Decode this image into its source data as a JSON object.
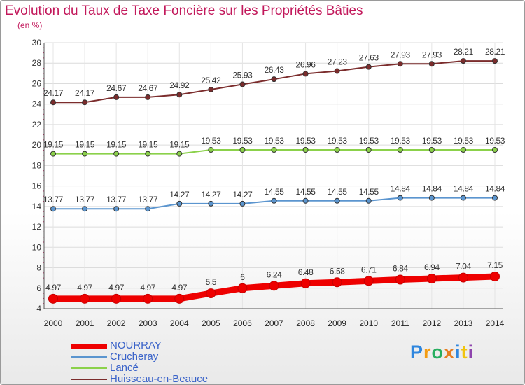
{
  "title": "Evolution du Taux de Taxe Foncière sur les Propriétés Bâties",
  "subtitle": "(en %)",
  "brand": {
    "letters": [
      {
        "ch": "P",
        "color": "#2e86de"
      },
      {
        "ch": "r",
        "color": "#f39c12"
      },
      {
        "ch": "o",
        "color": "#27ae60"
      },
      {
        "ch": "x",
        "color": "#e67e22"
      },
      {
        "ch": "i",
        "color": "#2e86de"
      },
      {
        "ch": "t",
        "color": "#f1c40f"
      },
      {
        "ch": "i",
        "color": "#8e44ad"
      }
    ]
  },
  "chart_data": {
    "type": "line",
    "title": "Evolution du Taux de Taxe Foncière sur les Propriétés Bâties",
    "ylabel": "(en %)",
    "xlabel": "",
    "ylim": [
      4,
      30
    ],
    "yticks": [
      4,
      6,
      8,
      10,
      12,
      14,
      16,
      18,
      20,
      22,
      24,
      26,
      28,
      30
    ],
    "grid": true,
    "x": [
      "2000",
      "2001",
      "2002",
      "2003",
      "2004",
      "2005",
      "2006",
      "2007",
      "2008",
      "2009",
      "2010",
      "2011",
      "2012",
      "2013",
      "2014"
    ],
    "series": [
      {
        "name": "Huisseau-en-Beauce",
        "color": "#7b2c2c",
        "values": [
          24.17,
          24.17,
          24.67,
          24.67,
          24.92,
          25.42,
          25.93,
          26.43,
          26.96,
          27.23,
          27.63,
          27.93,
          27.93,
          28.21,
          28.21
        ],
        "labels": [
          "24.17",
          "24.17",
          "24.67",
          "24.67",
          "24.92",
          "25.42",
          "25.93",
          "26.43",
          "26.96",
          "27.23",
          "27.63",
          "27.93",
          "27.93",
          "28.21",
          "28.21"
        ]
      },
      {
        "name": "Lancé",
        "color": "#8bd14a",
        "values": [
          19.15,
          19.15,
          19.15,
          19.15,
          19.15,
          19.53,
          19.53,
          19.53,
          19.53,
          19.53,
          19.53,
          19.53,
          19.53,
          19.53,
          19.53
        ],
        "labels": [
          "19.15",
          "19.15",
          "19.15",
          "19.15",
          "19.15",
          "19.53",
          "19.53",
          "19.53",
          "19.53",
          "19.53",
          "19.53",
          "19.53",
          "19.53",
          "19.53",
          "19.53"
        ]
      },
      {
        "name": "Crucheray",
        "color": "#5b95cf",
        "values": [
          13.77,
          13.77,
          13.77,
          13.77,
          14.27,
          14.27,
          14.27,
          14.55,
          14.55,
          14.55,
          14.55,
          14.84,
          14.84,
          14.84,
          14.84
        ],
        "labels": [
          "13.77",
          "13.77",
          "13.77",
          "13.77",
          "14.27",
          "14.27",
          "14.27",
          "14.55",
          "14.55",
          "14.55",
          "14.55",
          "14.84",
          "14.84",
          "14.84",
          "14.84"
        ]
      },
      {
        "name": "NOURRAY",
        "color": "#ee0000",
        "values": [
          4.97,
          4.97,
          4.97,
          4.97,
          4.97,
          5.5,
          6,
          6.24,
          6.48,
          6.58,
          6.71,
          6.84,
          6.94,
          7.04,
          7.15
        ],
        "labels": [
          "4.97",
          "4.97",
          "4.97",
          "4.97",
          "4.97",
          "5.5",
          "6",
          "6.24",
          "6.48",
          "6.58",
          "6.71",
          "6.84",
          "6.94",
          "7.04",
          "7.15"
        ]
      }
    ],
    "legend": [
      "NOURRAY",
      "Crucheray",
      "Lancé",
      "Huisseau-en-Beauce"
    ],
    "legend_position": "bottom-left"
  }
}
